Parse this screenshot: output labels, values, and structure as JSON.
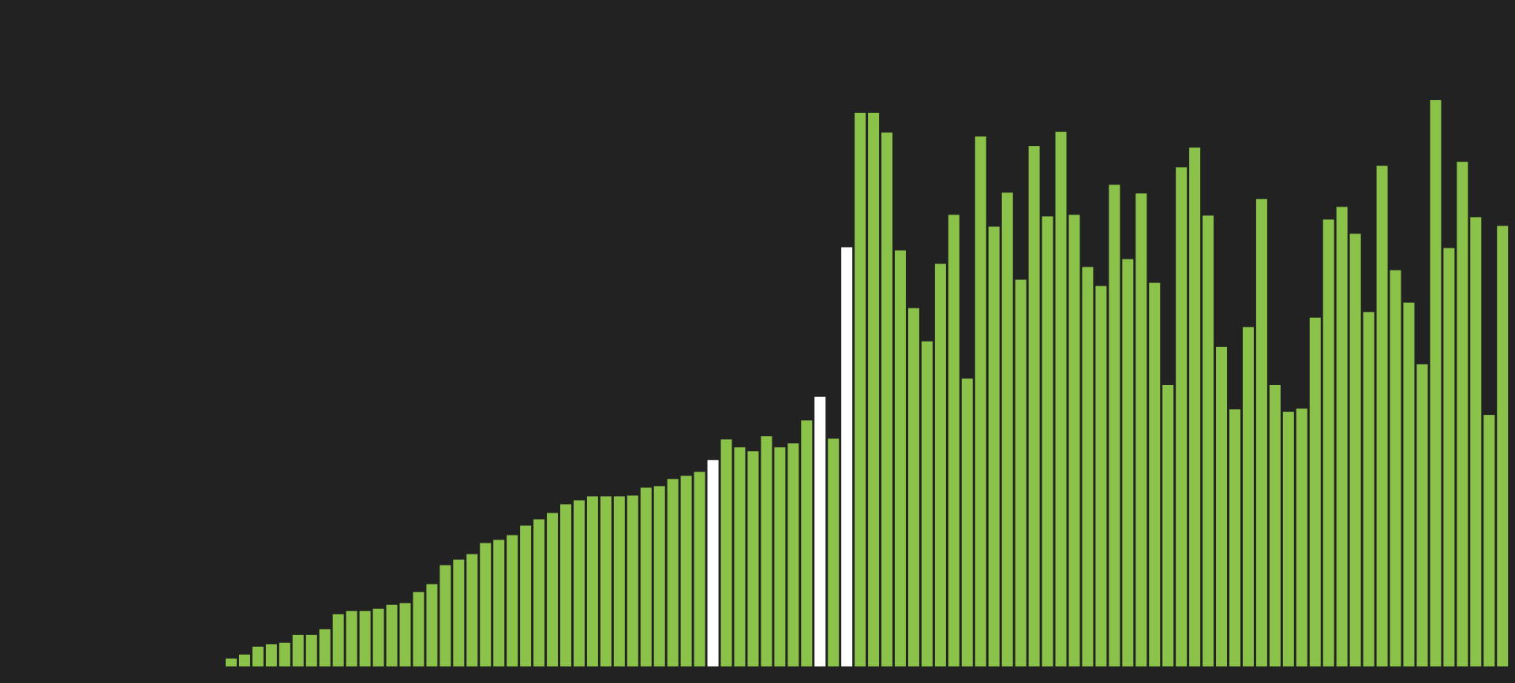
{
  "colors": {
    "background": "#222222",
    "bar": "#8bc34a",
    "highlight": "#ffffff"
  },
  "chart_data": {
    "type": "bar",
    "title": "",
    "xlabel": "",
    "ylabel": "",
    "grid": false,
    "legend": "none",
    "ylim": [
      0,
      700
    ],
    "values": [
      10,
      15,
      25,
      28,
      30,
      40,
      40,
      47,
      66,
      70,
      70,
      73,
      78,
      80,
      94,
      104,
      128,
      135,
      142,
      156,
      160,
      166,
      178,
      186,
      194,
      205,
      210,
      215,
      215,
      215,
      216,
      226,
      228,
      237,
      241,
      246,
      261,
      287,
      277,
      272,
      291,
      277,
      282,
      311,
      341,
      288,
      530,
      700,
      700,
      675,
      526,
      453,
      411,
      509,
      571,
      364,
      670,
      556,
      599,
      489,
      658,
      569,
      676,
      571,
      505,
      481,
      609,
      515,
      598,
      485,
      356,
      631,
      656,
      570,
      404,
      325,
      429,
      591,
      356,
      322,
      326,
      441,
      565,
      581,
      547,
      448,
      633,
      501,
      460,
      382,
      716,
      529,
      638,
      568,
      318,
      557
    ],
    "highlighted_indices": [
      36,
      44,
      46
    ]
  }
}
